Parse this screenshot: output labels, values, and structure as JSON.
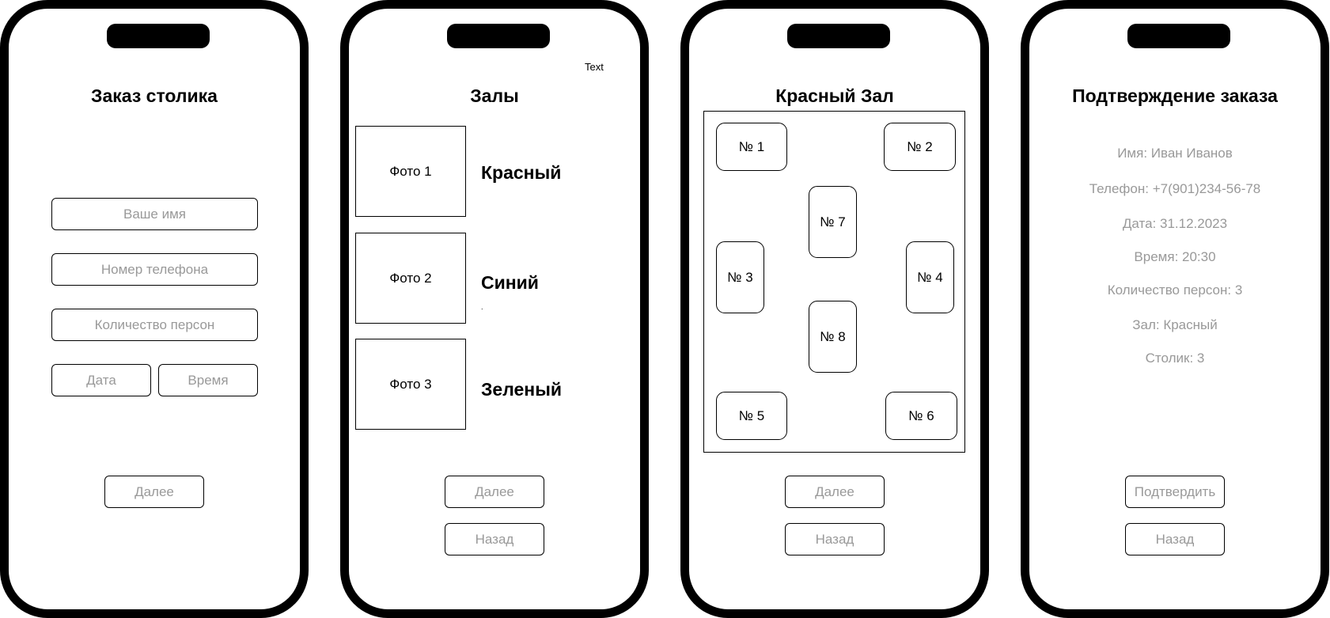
{
  "screen1": {
    "title": "Заказ столика",
    "name_placeholder": "Ваше имя",
    "phone_placeholder": "Номер телефона",
    "persons_placeholder": "Количество персон",
    "date_placeholder": "Дата",
    "time_placeholder": "Время",
    "next_label": "Далее"
  },
  "screen2": {
    "title": "Залы",
    "corner_text": "Text",
    "stray_mark": ".",
    "halls": [
      {
        "photo": "Фото 1",
        "name": "Красный"
      },
      {
        "photo": "Фото 2",
        "name": "Синий"
      },
      {
        "photo": "Фото 3",
        "name": "Зеленый"
      }
    ],
    "next_label": "Далее",
    "back_label": "Назад"
  },
  "screen3": {
    "title": "Красный Зал",
    "tables": [
      "№ 1",
      "№ 2",
      "№ 3",
      "№ 4",
      "№ 5",
      "№ 6",
      "№ 7",
      "№ 8"
    ],
    "next_label": "Далее",
    "back_label": "Назад"
  },
  "screen4": {
    "title": "Подтверждение заказа",
    "name": "Имя: Иван Иванов",
    "phone": "Телефон: +7(901)234-56-78",
    "date": "Дата: 31.12.2023",
    "time": "Время: 20:30",
    "persons": "Количество персон: 3",
    "hall": "Зал: Красный",
    "table": "Столик: 3",
    "confirm_label": "Подтвердить",
    "back_label": "Назад"
  },
  "colors": {
    "frame": "#000000",
    "placeholder_text": "#999999",
    "background": "#ffffff"
  }
}
